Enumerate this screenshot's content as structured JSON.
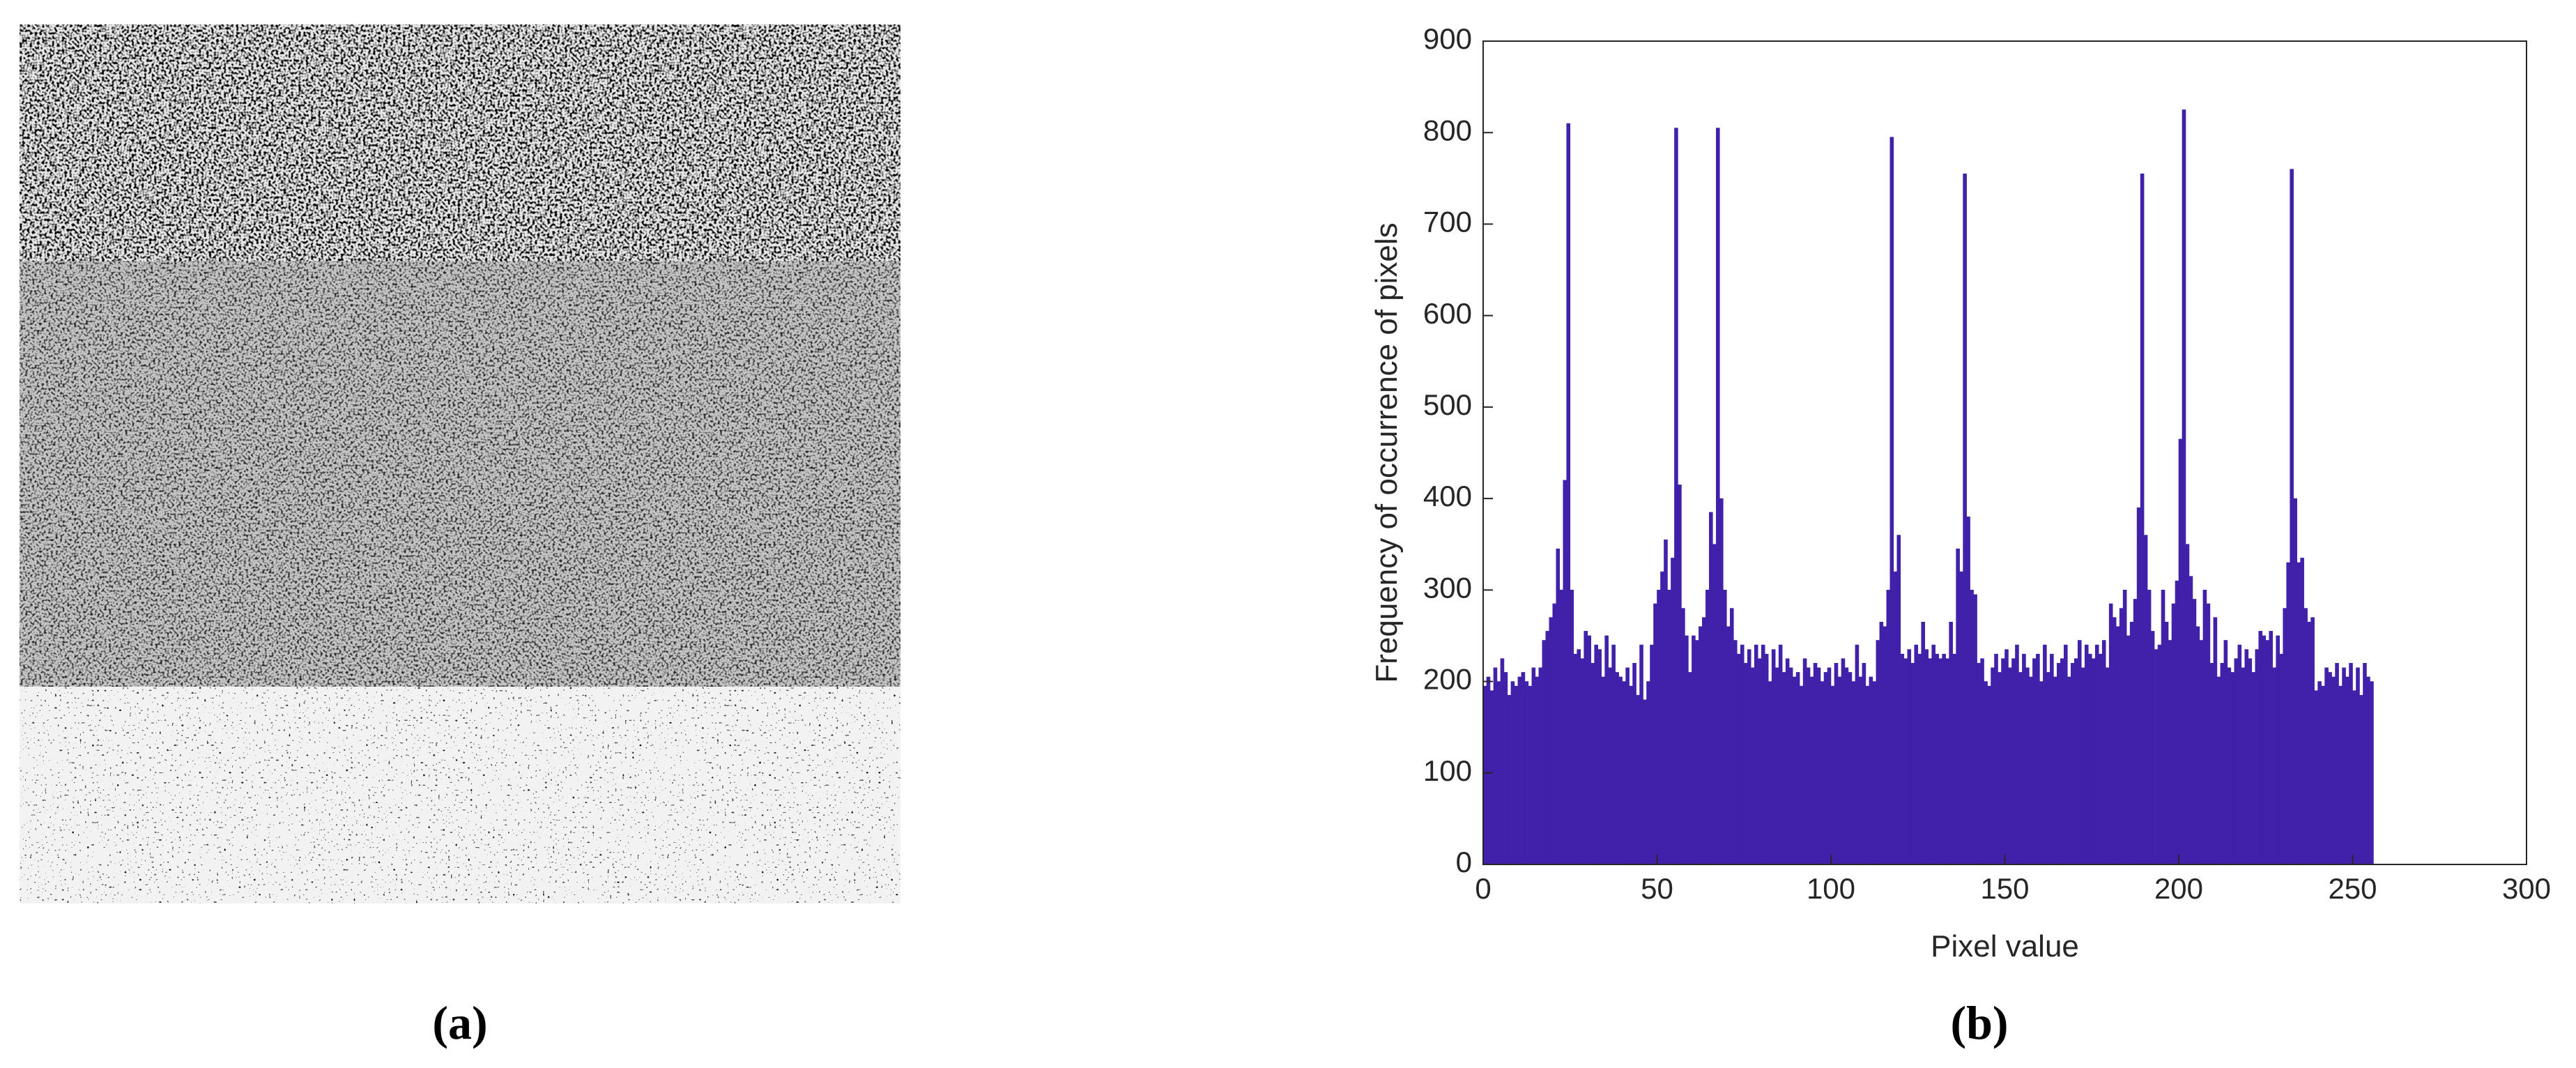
{
  "captions": [
    "(a)",
    "(b)"
  ],
  "chart_data": {
    "type": "histogram",
    "xlabel": "Pixel value",
    "ylabel": "Frequency of occurrence of pixels",
    "color": "#4121a9",
    "xlim": [
      0,
      300
    ],
    "xticks": [
      0,
      50,
      100,
      150,
      200,
      250,
      300
    ],
    "ylim": [
      0,
      900
    ],
    "yticks": [
      0,
      100,
      200,
      300,
      400,
      500,
      600,
      700,
      800,
      900
    ],
    "grid": false,
    "bins": [
      0,
      1,
      2,
      3,
      4,
      5,
      6,
      7,
      8,
      9,
      10,
      11,
      12,
      13,
      14,
      15,
      16,
      17,
      18,
      19,
      20,
      21,
      22,
      23,
      24,
      25,
      26,
      27,
      28,
      29,
      30,
      31,
      32,
      33,
      34,
      35,
      36,
      37,
      38,
      39,
      40,
      41,
      42,
      43,
      44,
      45,
      46,
      47,
      48,
      49,
      50,
      51,
      52,
      53,
      54,
      55,
      56,
      57,
      58,
      59,
      60,
      61,
      62,
      63,
      64,
      65,
      66,
      67,
      68,
      69,
      70,
      71,
      72,
      73,
      74,
      75,
      76,
      77,
      78,
      79,
      80,
      81,
      82,
      83,
      84,
      85,
      86,
      87,
      88,
      89,
      90,
      91,
      92,
      93,
      94,
      95,
      96,
      97,
      98,
      99,
      100,
      101,
      102,
      103,
      104,
      105,
      106,
      107,
      108,
      109,
      110,
      111,
      112,
      113,
      114,
      115,
      116,
      117,
      118,
      119,
      120,
      121,
      122,
      123,
      124,
      125,
      126,
      127,
      128,
      129,
      130,
      131,
      132,
      133,
      134,
      135,
      136,
      137,
      138,
      139,
      140,
      141,
      142,
      143,
      144,
      145,
      146,
      147,
      148,
      149,
      150,
      151,
      152,
      153,
      154,
      155,
      156,
      157,
      158,
      159,
      160,
      161,
      162,
      163,
      164,
      165,
      166,
      167,
      168,
      169,
      170,
      171,
      172,
      173,
      174,
      175,
      176,
      177,
      178,
      179,
      180,
      181,
      182,
      183,
      184,
      185,
      186,
      187,
      188,
      189,
      190,
      191,
      192,
      193,
      194,
      195,
      196,
      197,
      198,
      199,
      200,
      201,
      202,
      203,
      204,
      205,
      206,
      207,
      208,
      209,
      210,
      211,
      212,
      213,
      214,
      215,
      216,
      217,
      218,
      219,
      220,
      221,
      222,
      223,
      224,
      225,
      226,
      227,
      228,
      229,
      230,
      231,
      232,
      233,
      234,
      235,
      236,
      237,
      238,
      239,
      240,
      241,
      242,
      243,
      244,
      245,
      246,
      247,
      248,
      249,
      250,
      251,
      252,
      253,
      254,
      255,
      256
    ],
    "values": [
      195,
      205,
      190,
      215,
      200,
      225,
      210,
      185,
      200,
      195,
      205,
      210,
      200,
      195,
      215,
      205,
      215,
      245,
      255,
      270,
      285,
      345,
      300,
      420,
      810,
      300,
      230,
      235,
      225,
      255,
      250,
      220,
      240,
      235,
      205,
      250,
      215,
      240,
      210,
      205,
      200,
      215,
      195,
      220,
      185,
      240,
      180,
      200,
      240,
      285,
      300,
      320,
      355,
      300,
      335,
      805,
      415,
      280,
      250,
      210,
      250,
      245,
      260,
      270,
      300,
      385,
      350,
      805,
      400,
      300,
      260,
      280,
      245,
      230,
      240,
      220,
      235,
      215,
      240,
      225,
      240,
      230,
      200,
      235,
      215,
      240,
      210,
      225,
      215,
      205,
      210,
      195,
      225,
      215,
      205,
      220,
      215,
      200,
      210,
      215,
      195,
      220,
      205,
      225,
      215,
      210,
      200,
      240,
      205,
      220,
      195,
      205,
      200,
      245,
      265,
      260,
      300,
      795,
      320,
      360,
      230,
      225,
      235,
      220,
      240,
      230,
      265,
      235,
      225,
      240,
      230,
      225,
      230,
      225,
      265,
      230,
      345,
      320,
      755,
      380,
      300,
      295,
      220,
      225,
      200,
      195,
      215,
      230,
      210,
      225,
      235,
      215,
      225,
      240,
      210,
      230,
      215,
      205,
      225,
      230,
      200,
      240,
      210,
      230,
      205,
      220,
      225,
      240,
      205,
      220,
      225,
      245,
      215,
      240,
      230,
      225,
      240,
      230,
      245,
      215,
      285,
      270,
      260,
      280,
      300,
      250,
      265,
      290,
      390,
      755,
      360,
      300,
      255,
      235,
      240,
      300,
      265,
      245,
      285,
      310,
      465,
      825,
      350,
      315,
      290,
      260,
      245,
      300,
      285,
      220,
      270,
      205,
      220,
      245,
      215,
      210,
      225,
      240,
      215,
      235,
      225,
      210,
      235,
      255,
      250,
      245,
      255,
      215,
      250,
      230,
      280,
      330,
      760,
      400,
      330,
      335,
      280,
      265,
      270,
      190,
      200,
      195,
      215,
      210,
      205,
      220,
      195,
      215,
      205,
      220,
      190,
      215,
      185,
      220,
      205,
      200
    ]
  }
}
